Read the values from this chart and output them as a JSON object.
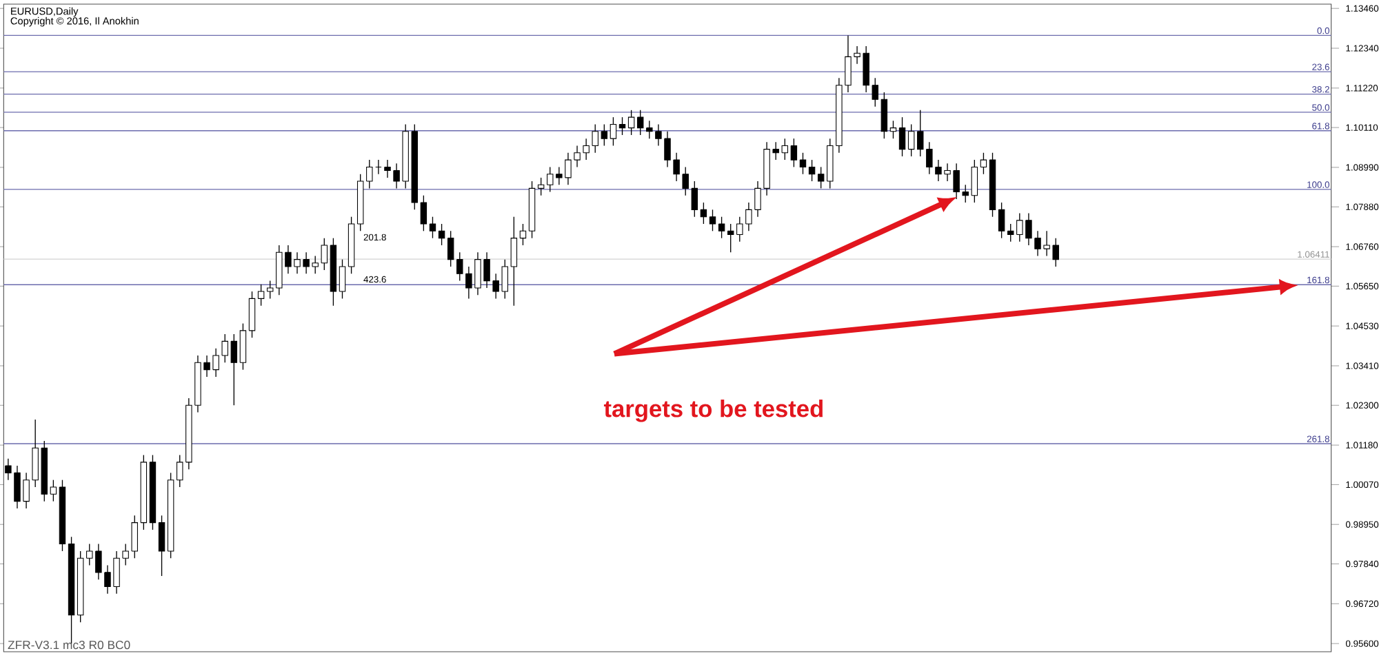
{
  "chart_data": {
    "type": "candlestick",
    "title": "EURUSD,Daily",
    "subtitle": "Copyright © 2016, Il Anokhin",
    "annotations": [
      "targets to be tested",
      "ZFR-V3.1 mc3 R0 BC0",
      "201.8",
      "423.6",
      {
        "text": "0.0",
        "y": 1.127
      },
      {
        "text": "23.6",
        "y": 1.1168
      },
      {
        "text": "38.2",
        "y": 1.1105
      },
      {
        "text": "50.0",
        "y": 1.1054
      },
      {
        "text": "61.8",
        "y": 1.1002
      },
      {
        "text": "100.0",
        "y": 1.0837
      },
      {
        "text": "161.8",
        "y": 1.0569
      },
      {
        "text": "261.8",
        "y": 1.0122
      }
    ],
    "categories": [
      null,
      null,
      null,
      null,
      null,
      null,
      null,
      null,
      null,
      null,
      null,
      null,
      null,
      null,
      null,
      null,
      null,
      null,
      null,
      null,
      null,
      null,
      null,
      null,
      null,
      null,
      null,
      null,
      null,
      null,
      null,
      null,
      null,
      null,
      null,
      null,
      null,
      null,
      null,
      null,
      null,
      null,
      null,
      null,
      null,
      null,
      null,
      null,
      null,
      null,
      null,
      null,
      null,
      null,
      null,
      null,
      null,
      null,
      null,
      null,
      null,
      null,
      null,
      null,
      null,
      null,
      null,
      null,
      null,
      null,
      null,
      null,
      null,
      null,
      null,
      null,
      null,
      null,
      null,
      null,
      null,
      null,
      null,
      null,
      null,
      null,
      null,
      null,
      null,
      null,
      null,
      null,
      null,
      null,
      null,
      null,
      null,
      null,
      null,
      null,
      null,
      null,
      null,
      null,
      null,
      null,
      null,
      null,
      null,
      null,
      null,
      null,
      null,
      null,
      null,
      null,
      null,
      null,
      null,
      null,
      null,
      null,
      null,
      null,
      null,
      null,
      null,
      null,
      null,
      null,
      null,
      null,
      null,
      null,
      null,
      null,
      null,
      null,
      null,
      null,
      null,
      null,
      null,
      null,
      null,
      null,
      null
    ],
    "ohlc": [
      [
        1.006,
        1.008,
        1.002,
        1.004
      ],
      [
        1.004,
        1.006,
        0.994,
        0.996
      ],
      [
        0.996,
        1.004,
        0.994,
        1.002
      ],
      [
        1.002,
        1.019,
        1.0,
        1.011
      ],
      [
        1.011,
        1.013,
        0.996,
        0.998
      ],
      [
        0.998,
        1.002,
        0.996,
        1.0
      ],
      [
        1.0,
        1.002,
        0.982,
        0.984
      ],
      [
        0.984,
        0.986,
        0.956,
        0.964
      ],
      [
        0.964,
        0.982,
        0.962,
        0.98
      ],
      [
        0.98,
        0.984,
        0.978,
        0.982
      ],
      [
        0.982,
        0.984,
        0.974,
        0.976
      ],
      [
        0.976,
        0.978,
        0.97,
        0.972
      ],
      [
        0.972,
        0.982,
        0.97,
        0.98
      ],
      [
        0.98,
        0.984,
        0.978,
        0.982
      ],
      [
        0.982,
        0.992,
        0.98,
        0.99
      ],
      [
        0.99,
        1.009,
        0.988,
        1.007
      ],
      [
        1.007,
        1.009,
        0.988,
        0.99
      ],
      [
        0.99,
        0.992,
        0.975,
        0.982
      ],
      [
        0.982,
        1.004,
        0.98,
        1.002
      ],
      [
        1.002,
        1.009,
        1.0,
        1.007
      ],
      [
        1.007,
        1.025,
        1.005,
        1.023
      ],
      [
        1.023,
        1.037,
        1.021,
        1.035
      ],
      [
        1.035,
        1.037,
        1.031,
        1.033
      ],
      [
        1.033,
        1.039,
        1.031,
        1.037
      ],
      [
        1.037,
        1.043,
        1.035,
        1.041
      ],
      [
        1.041,
        1.043,
        1.023,
        1.035
      ],
      [
        1.035,
        1.046,
        1.033,
        1.044
      ],
      [
        1.044,
        1.055,
        1.042,
        1.053
      ],
      [
        1.053,
        1.057,
        1.051,
        1.055
      ],
      [
        1.055,
        1.058,
        1.053,
        1.056
      ],
      [
        1.056,
        1.068,
        1.054,
        1.066
      ],
      [
        1.066,
        1.068,
        1.06,
        1.062
      ],
      [
        1.062,
        1.066,
        1.06,
        1.064
      ],
      [
        1.064,
        1.066,
        1.06,
        1.062
      ],
      [
        1.062,
        1.065,
        1.06,
        1.063
      ],
      [
        1.063,
        1.07,
        1.061,
        1.068
      ],
      [
        1.068,
        1.07,
        1.051,
        1.055
      ],
      [
        1.055,
        1.064,
        1.053,
        1.062
      ],
      [
        1.062,
        1.076,
        1.06,
        1.074
      ],
      [
        1.074,
        1.088,
        1.072,
        1.086
      ],
      [
        1.086,
        1.092,
        1.084,
        1.09
      ],
      [
        1.09,
        1.092,
        1.088,
        1.09
      ],
      [
        1.09,
        1.092,
        1.087,
        1.089
      ],
      [
        1.089,
        1.091,
        1.084,
        1.086
      ],
      [
        1.086,
        1.102,
        1.084,
        1.1
      ],
      [
        1.1,
        1.102,
        1.078,
        1.08
      ],
      [
        1.08,
        1.082,
        1.072,
        1.074
      ],
      [
        1.074,
        1.076,
        1.07,
        1.072
      ],
      [
        1.072,
        1.074,
        1.068,
        1.07
      ],
      [
        1.07,
        1.072,
        1.062,
        1.064
      ],
      [
        1.064,
        1.066,
        1.058,
        1.06
      ],
      [
        1.06,
        1.062,
        1.053,
        1.056
      ],
      [
        1.056,
        1.066,
        1.054,
        1.064
      ],
      [
        1.064,
        1.066,
        1.056,
        1.058
      ],
      [
        1.058,
        1.06,
        1.053,
        1.055
      ],
      [
        1.055,
        1.064,
        1.053,
        1.062
      ],
      [
        1.062,
        1.076,
        1.051,
        1.07
      ],
      [
        1.07,
        1.074,
        1.068,
        1.072
      ],
      [
        1.072,
        1.086,
        1.07,
        1.084
      ],
      [
        1.084,
        1.087,
        1.082,
        1.085
      ],
      [
        1.085,
        1.09,
        1.083,
        1.088
      ],
      [
        1.088,
        1.09,
        1.085,
        1.087
      ],
      [
        1.087,
        1.094,
        1.085,
        1.092
      ],
      [
        1.092,
        1.096,
        1.09,
        1.094
      ],
      [
        1.094,
        1.098,
        1.092,
        1.096
      ],
      [
        1.096,
        1.102,
        1.094,
        1.1
      ],
      [
        1.1,
        1.102,
        1.096,
        1.098
      ],
      [
        1.098,
        1.104,
        1.096,
        1.102
      ],
      [
        1.102,
        1.104,
        1.099,
        1.101
      ],
      [
        1.101,
        1.106,
        1.099,
        1.104
      ],
      [
        1.104,
        1.106,
        1.099,
        1.101
      ],
      [
        1.101,
        1.103,
        1.098,
        1.1
      ],
      [
        1.1,
        1.102,
        1.096,
        1.098
      ],
      [
        1.098,
        1.1,
        1.09,
        1.092
      ],
      [
        1.092,
        1.094,
        1.086,
        1.088
      ],
      [
        1.088,
        1.09,
        1.082,
        1.084
      ],
      [
        1.084,
        1.086,
        1.076,
        1.078
      ],
      [
        1.078,
        1.08,
        1.074,
        1.076
      ],
      [
        1.076,
        1.078,
        1.072,
        1.074
      ],
      [
        1.074,
        1.076,
        1.07,
        1.072
      ],
      [
        1.072,
        1.074,
        1.066,
        1.071
      ],
      [
        1.071,
        1.076,
        1.069,
        1.074
      ],
      [
        1.074,
        1.08,
        1.072,
        1.078
      ],
      [
        1.078,
        1.086,
        1.076,
        1.084
      ],
      [
        1.084,
        1.097,
        1.082,
        1.095
      ],
      [
        1.095,
        1.097,
        1.092,
        1.094
      ],
      [
        1.094,
        1.098,
        1.092,
        1.096
      ],
      [
        1.096,
        1.098,
        1.09,
        1.092
      ],
      [
        1.092,
        1.094,
        1.088,
        1.09
      ],
      [
        1.09,
        1.092,
        1.086,
        1.088
      ],
      [
        1.088,
        1.09,
        1.084,
        1.086
      ],
      [
        1.086,
        1.098,
        1.084,
        1.096
      ],
      [
        1.096,
        1.115,
        1.094,
        1.113
      ],
      [
        1.113,
        1.127,
        1.111,
        1.121
      ],
      [
        1.121,
        1.124,
        1.119,
        1.122
      ],
      [
        1.122,
        1.124,
        1.111,
        1.113
      ],
      [
        1.113,
        1.115,
        1.107,
        1.109
      ],
      [
        1.109,
        1.111,
        1.098,
        1.1
      ],
      [
        1.1,
        1.103,
        1.098,
        1.101
      ],
      [
        1.101,
        1.104,
        1.093,
        1.095
      ],
      [
        1.095,
        1.102,
        1.093,
        1.1
      ],
      [
        1.1,
        1.106,
        1.093,
        1.095
      ],
      [
        1.095,
        1.097,
        1.088,
        1.09
      ],
      [
        1.09,
        1.092,
        1.086,
        1.088
      ],
      [
        1.088,
        1.091,
        1.086,
        1.089
      ],
      [
        1.089,
        1.091,
        1.081,
        1.083
      ],
      [
        1.083,
        1.085,
        1.08,
        1.082
      ],
      [
        1.082,
        1.092,
        1.08,
        1.09
      ],
      [
        1.09,
        1.094,
        1.088,
        1.092
      ],
      [
        1.092,
        1.094,
        1.076,
        1.078
      ],
      [
        1.078,
        1.08,
        1.07,
        1.072
      ],
      [
        1.072,
        1.074,
        1.069,
        1.071
      ],
      [
        1.071,
        1.077,
        1.069,
        1.075
      ],
      [
        1.075,
        1.077,
        1.068,
        1.07
      ],
      [
        1.07,
        1.072,
        1.065,
        1.067
      ],
      [
        1.067,
        1.072,
        1.065,
        1.068
      ],
      [
        1.068,
        1.07,
        1.062,
        1.064
      ],
      null,
      null,
      null,
      null,
      null,
      null,
      null,
      null,
      null,
      null,
      null,
      null,
      null,
      null,
      null,
      null,
      null,
      null,
      null,
      null,
      null,
      null,
      null,
      null,
      null,
      null,
      null,
      null,
      null,
      null
    ],
    "ylim": [
      0.9537,
      1.1358
    ],
    "yticks": [
      {
        "value": 1.1346,
        "label": "1.13460"
      },
      {
        "value": 1.1234,
        "label": "1.12340"
      },
      {
        "value": 1.1122,
        "label": "1.11220"
      },
      {
        "value": 1.1011,
        "label": "1.10110"
      },
      {
        "value": 1.0899,
        "label": "1.08990"
      },
      {
        "value": 1.0788,
        "label": "1.07880"
      },
      {
        "value": 1.0676,
        "label": "1.06760"
      },
      {
        "value": 1.0565,
        "label": "1.05650"
      },
      {
        "value": 1.0453,
        "label": "1.04530"
      },
      {
        "value": 1.0341,
        "label": "1.03410"
      },
      {
        "value": 1.023,
        "label": "1.02300"
      },
      {
        "value": 1.0118,
        "label": "1.01180"
      },
      {
        "value": 1.0007,
        "label": "1.00070"
      },
      {
        "value": 0.9895,
        "label": "0.98950"
      },
      {
        "value": 0.9784,
        "label": "0.97840"
      },
      {
        "value": 0.9672,
        "label": "0.96720"
      },
      {
        "value": 0.956,
        "label": "0.95600"
      }
    ],
    "tick_labels": "y",
    "ref_lines": [
      {
        "axis": "y",
        "value": 1.127,
        "color": "#6b6bad"
      },
      {
        "axis": "y",
        "value": 1.1168,
        "color": "#6b6bad"
      },
      {
        "axis": "y",
        "value": 1.1105,
        "color": "#6b6bad"
      },
      {
        "axis": "y",
        "value": 1.1054,
        "color": "#6b6bad"
      },
      {
        "axis": "y",
        "value": 1.1002,
        "color": "#6b6bad"
      },
      {
        "axis": "y",
        "value": 1.0837,
        "color": "#6b6bad"
      },
      {
        "axis": "y",
        "value": 1.0569,
        "color": "#6b6bad"
      },
      {
        "axis": "y",
        "value": 1.0122,
        "color": "#6b6bad"
      },
      {
        "axis": "y",
        "value": 1.06411,
        "label": "1.06411",
        "color": "#d2d2d2"
      }
    ]
  }
}
